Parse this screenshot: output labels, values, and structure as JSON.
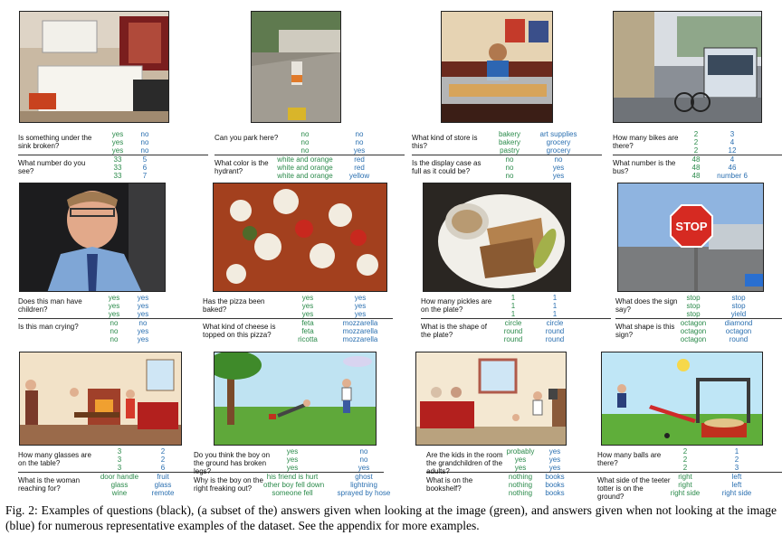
{
  "figure": {
    "cells": [
      {
        "image": "kitchen-photo",
        "qa": [
          {
            "question": "Is something under the sink broken?",
            "green": [
              "yes",
              "yes",
              "yes"
            ],
            "blue": [
              "no",
              "no",
              "no"
            ]
          },
          {
            "question": "What number do you see?",
            "green": [
              "33",
              "33",
              "33"
            ],
            "blue": [
              "5",
              "6",
              "7"
            ]
          }
        ]
      },
      {
        "image": "sidewalk-hydrant-photo",
        "qa": [
          {
            "question": "Can you park here?",
            "green": [
              "no",
              "no",
              "no"
            ],
            "blue": [
              "no",
              "no",
              "yes"
            ]
          },
          {
            "question": "What color is the hydrant?",
            "green": [
              "white and orange",
              "white and orange",
              "white and orange"
            ],
            "blue": [
              "red",
              "red",
              "yellow"
            ]
          }
        ]
      },
      {
        "image": "bakery-photo",
        "qa": [
          {
            "question": "What kind of store is this?",
            "green": [
              "bakery",
              "bakery",
              "pastry"
            ],
            "blue": [
              "art supplies",
              "grocery",
              "grocery"
            ]
          },
          {
            "question": "Is the display case as full as it could be?",
            "green": [
              "no",
              "no",
              "no"
            ],
            "blue": [
              "no",
              "yes",
              "yes"
            ]
          }
        ]
      },
      {
        "image": "bus-street-photo",
        "qa": [
          {
            "question": "How many bikes are there?",
            "green": [
              "2",
              "2",
              "2"
            ],
            "blue": [
              "3",
              "4",
              "12"
            ]
          },
          {
            "question": "What number is the bus?",
            "green": [
              "48",
              "48",
              "48"
            ],
            "blue": [
              "4",
              "46",
              "number 6"
            ]
          }
        ]
      },
      {
        "image": "man-in-car-photo",
        "qa": [
          {
            "question": "Does this man have children?",
            "green": [
              "yes",
              "yes",
              "yes"
            ],
            "blue": [
              "yes",
              "yes",
              "yes"
            ]
          },
          {
            "question": "Is this man crying?",
            "green": [
              "no",
              "no",
              "no"
            ],
            "blue": [
              "no",
              "yes",
              "yes"
            ]
          }
        ]
      },
      {
        "image": "pizza-photo",
        "qa": [
          {
            "question": "Has the pizza been baked?",
            "green": [
              "yes",
              "yes",
              "yes"
            ],
            "blue": [
              "yes",
              "yes",
              "yes"
            ]
          },
          {
            "question": "What kind of cheese is topped on this pizza?",
            "green": [
              "feta",
              "feta",
              "ricotta"
            ],
            "blue": [
              "mozzarella",
              "mozzarella",
              "mozzarella"
            ]
          }
        ]
      },
      {
        "image": "sandwich-plate-photo",
        "qa": [
          {
            "question": "How many pickles are on the plate?",
            "green": [
              "1",
              "1",
              "1"
            ],
            "blue": [
              "1",
              "1",
              "1"
            ]
          },
          {
            "question": "What is the shape of the plate?",
            "green": [
              "circle",
              "round",
              "round"
            ],
            "blue": [
              "circle",
              "round",
              "round"
            ]
          }
        ]
      },
      {
        "image": "stop-sign-photo",
        "qa": [
          {
            "question": "What does the sign say?",
            "green": [
              "stop",
              "stop",
              "stop"
            ],
            "blue": [
              "stop",
              "stop",
              "yield"
            ]
          },
          {
            "question": "What shape is this sign?",
            "green": [
              "octagon",
              "octagon",
              "octagon"
            ],
            "blue": [
              "diamond",
              "octagon",
              "round"
            ]
          }
        ]
      },
      {
        "image": "living-room-clipart",
        "qa": [
          {
            "question": "How many glasses are on the table?",
            "green": [
              "3",
              "3",
              "3"
            ],
            "blue": [
              "2",
              "2",
              "6"
            ]
          },
          {
            "question": "What is the woman reaching for?",
            "green": [
              "door handle",
              "glass",
              "wine"
            ],
            "blue": [
              "fruit",
              "glass",
              "remote"
            ]
          }
        ]
      },
      {
        "image": "park-boys-clipart",
        "qa": [
          {
            "question": "Do you think the boy on the ground has broken legs?",
            "green": [
              "yes",
              "yes",
              "yes"
            ],
            "blue": [
              "no",
              "no",
              "yes"
            ]
          },
          {
            "question": "Why is the boy on the right freaking out?",
            "green": [
              "his friend is hurt",
              "other boy fell down",
              "someone fell"
            ],
            "blue": [
              "ghost",
              "lightning",
              "sprayed by hose"
            ]
          }
        ]
      },
      {
        "image": "family-room-clipart",
        "qa": [
          {
            "question": "Are the kids in the room the grandchildren of the adults?",
            "green": [
              "probably",
              "yes",
              "yes"
            ],
            "blue": [
              "yes",
              "yes",
              "yes"
            ]
          },
          {
            "question": "What is on the bookshelf?",
            "green": [
              "nothing",
              "nothing",
              "nothing"
            ],
            "blue": [
              "books",
              "books",
              "books"
            ]
          }
        ]
      },
      {
        "image": "playground-clipart",
        "qa": [
          {
            "question": "How many balls are there?",
            "green": [
              "2",
              "2",
              "2"
            ],
            "blue": [
              "1",
              "2",
              "3"
            ]
          },
          {
            "question": "What side of the teeter totter is on the ground?",
            "green": [
              "right",
              "right",
              "right side"
            ],
            "blue": [
              "left",
              "left",
              "right side"
            ]
          }
        ]
      }
    ],
    "stop_sign_text": "STOP"
  },
  "caption": "Fig. 2: Examples of questions (black), (a subset of the) answers given when looking at the image (green), and answers given when not looking at the image (blue) for numerous representative examples of the dataset. See the appendix for more examples.",
  "colors": {
    "green_answer": "#2a8a4a",
    "blue_answer": "#2a6fb0"
  }
}
